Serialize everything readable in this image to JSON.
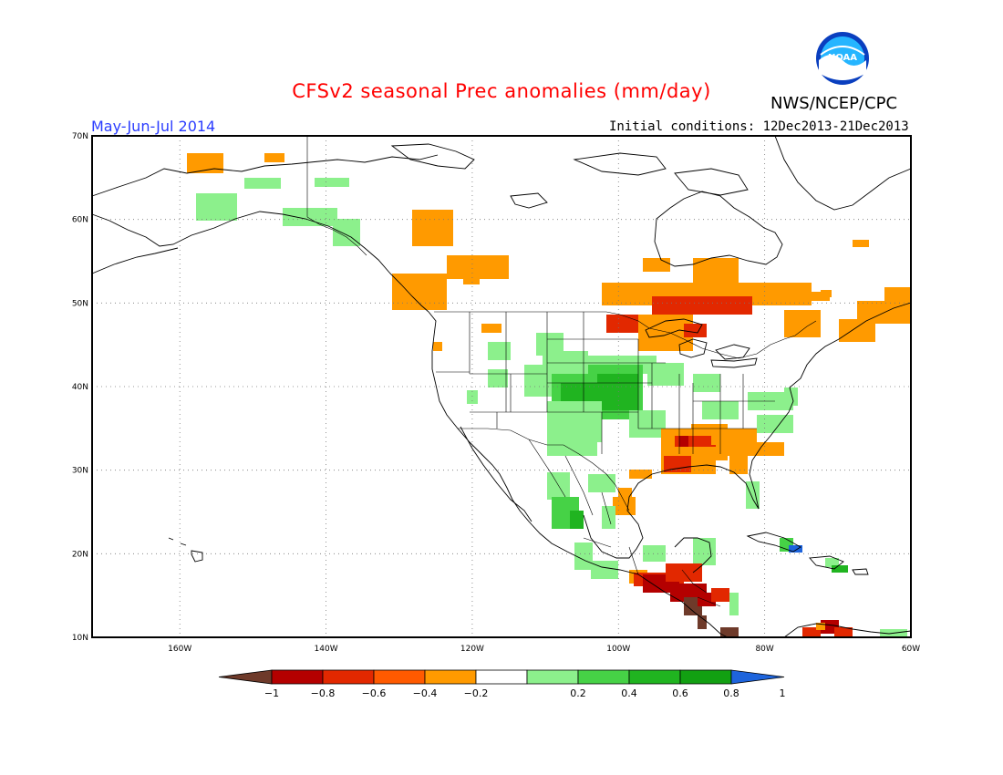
{
  "header": {
    "title": "CFSv2 seasonal Prec anomalies (mm/day)",
    "season": "May-Jun-Jul 2014",
    "initial_conditions": "Initial conditions: 12Dec2013-21Dec2013",
    "agency": "NWS/NCEP/CPC",
    "logo_text": "NOAA"
  },
  "map": {
    "lon_labels": [
      "160W",
      "140W",
      "120W",
      "100W",
      "80W",
      "60W"
    ],
    "lat_labels": [
      "70N",
      "60N",
      "50N",
      "40N",
      "30N",
      "20N",
      "10N"
    ],
    "lon_range": [
      -172,
      -60
    ],
    "lat_range": [
      10,
      70
    ]
  },
  "colorbar": {
    "tick_labels": [
      "-1",
      "-0.8",
      "-0.6",
      "-0.4",
      "-0.2",
      "0.2",
      "0.4",
      "0.6",
      "0.8",
      "1"
    ],
    "colors": [
      "#6e3a2a",
      "#b40000",
      "#e22800",
      "#ff5a00",
      "#ff9a00",
      "#ffffff",
      "#8cf08c",
      "#46d246",
      "#20b420",
      "#12a012",
      "#1e64dc"
    ]
  }
}
